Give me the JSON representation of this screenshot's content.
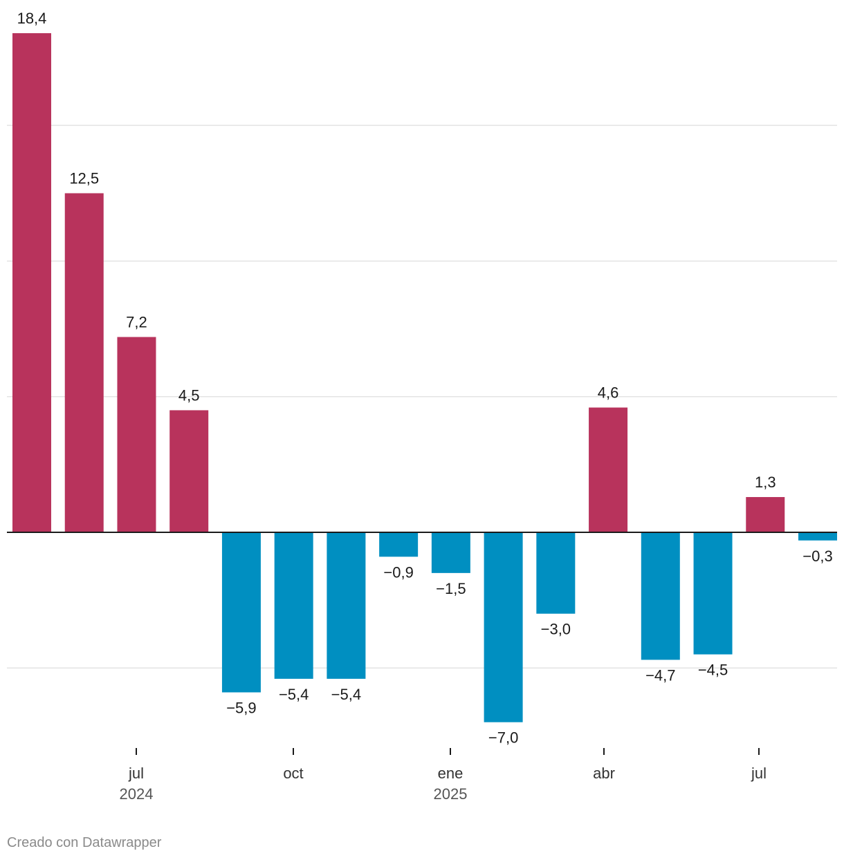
{
  "chart_data": {
    "type": "bar",
    "categories": [
      "2024-05",
      "2024-06",
      "2024-07",
      "2024-08",
      "2024-09",
      "2024-10",
      "2024-11",
      "2024-12",
      "2025-01",
      "2025-02",
      "2025-03",
      "2025-04",
      "2025-05",
      "2025-06",
      "2025-07",
      "2025-08"
    ],
    "values": [
      18.4,
      12.5,
      7.2,
      4.5,
      -5.9,
      -5.4,
      -5.4,
      -0.9,
      -1.5,
      -7.0,
      -3.0,
      4.6,
      -4.7,
      -4.5,
      1.3,
      -0.3
    ],
    "value_labels": [
      "18,4",
      "12,5",
      "7,2",
      "4,5",
      "−5,9",
      "−5,4",
      "−5,4",
      "−0,9",
      "−1,5",
      "−7,0",
      "−3,0",
      "4,6",
      "−4,7",
      "−4,5",
      "1,3",
      "−0,3"
    ],
    "ylim": [
      -8,
      18.4
    ],
    "yticks": [
      -5,
      0,
      5,
      10,
      15
    ],
    "grid": true,
    "x_ticks": [
      {
        "label": "jul",
        "year": "2024",
        "index": 2
      },
      {
        "label": "oct",
        "year": "",
        "index": 5
      },
      {
        "label": "ene",
        "year": "2025",
        "index": 8
      },
      {
        "label": "abr",
        "year": "",
        "index": 11
      },
      {
        "label": "jul",
        "year": "",
        "index": 14
      }
    ],
    "colors": {
      "positive": "#b8335c",
      "negative": "#008fc1"
    }
  },
  "credit": "Creado con Datawrapper"
}
